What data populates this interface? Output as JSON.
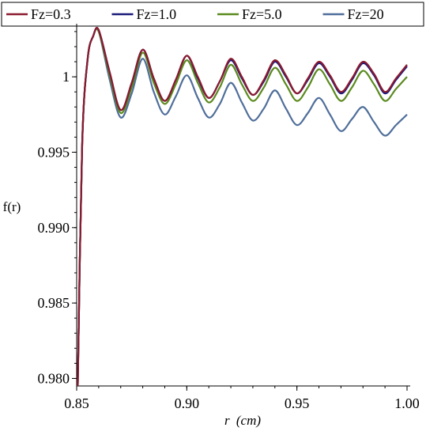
{
  "chart_data": {
    "type": "line",
    "xlabel": "r (cm)",
    "xlabel_var": "r",
    "xlabel_unit": "(cm)",
    "ylabel": "f(r)",
    "xlim": [
      0.85,
      1.0
    ],
    "ylim": [
      0.9795,
      1.0031
    ],
    "x_ticks": [
      {
        "value": 0.85,
        "label": "0.85"
      },
      {
        "value": 0.9,
        "label": "0.90"
      },
      {
        "value": 0.95,
        "label": "0.95"
      },
      {
        "value": 1.0,
        "label": "1.00"
      }
    ],
    "y_ticks": [
      {
        "value": 0.98,
        "label": "0.980"
      },
      {
        "value": 0.985,
        "label": "0.985"
      },
      {
        "value": 0.99,
        "label": "0.990"
      },
      {
        "value": 0.995,
        "label": "0.995"
      },
      {
        "value": 1.0,
        "label": "1"
      }
    ],
    "grid": false,
    "legend_position": "top",
    "series": [
      {
        "name": "Fz=0.3",
        "color": "#8b1a2f",
        "x": [
          0.8505,
          0.8525,
          0.855,
          0.8575,
          0.86,
          0.865,
          0.87,
          0.875,
          0.88,
          0.885,
          0.89,
          0.895,
          0.9,
          0.905,
          0.91,
          0.915,
          0.92,
          0.925,
          0.93,
          0.935,
          0.94,
          0.945,
          0.95,
          0.955,
          0.96,
          0.965,
          0.97,
          0.975,
          0.98,
          0.985,
          0.99,
          0.995,
          1.0
        ],
        "y": [
          0.9795,
          0.9955,
          1.0012,
          1.0027,
          1.0031,
          1.0003,
          0.9978,
          0.9996,
          1.0018,
          0.9999,
          0.9984,
          0.9998,
          1.0014,
          1.0,
          0.9986,
          0.9997,
          1.0012,
          1.0,
          0.9988,
          0.9998,
          1.0011,
          1.0001,
          0.9989,
          0.9999,
          1.001,
          1.0001,
          0.999,
          0.9999,
          1.001,
          1.0002,
          0.999,
          0.9999,
          1.0008
        ]
      },
      {
        "name": "Fz=1.0",
        "color": "#1a1a7a",
        "x": [
          0.8505,
          0.8525,
          0.855,
          0.8575,
          0.86,
          0.865,
          0.87,
          0.875,
          0.88,
          0.885,
          0.89,
          0.895,
          0.9,
          0.905,
          0.91,
          0.915,
          0.92,
          0.925,
          0.93,
          0.935,
          0.94,
          0.945,
          0.95,
          0.955,
          0.96,
          0.965,
          0.97,
          0.975,
          0.98,
          0.985,
          0.99,
          0.995,
          1.0
        ],
        "y": [
          0.9795,
          0.9955,
          1.0012,
          1.0027,
          1.0031,
          1.0003,
          0.9978,
          0.9996,
          1.0018,
          0.9999,
          0.9984,
          0.9998,
          1.0014,
          0.9999,
          0.9986,
          0.9997,
          1.0011,
          0.9999,
          0.9988,
          0.9997,
          1.001,
          1.0,
          0.9989,
          0.9998,
          1.0009,
          1.0,
          0.9989,
          0.9998,
          1.0009,
          1.0001,
          0.9989,
          0.9998,
          1.0007
        ]
      },
      {
        "name": "Fz=5.0",
        "color": "#5a8a1e",
        "x": [
          0.8505,
          0.8525,
          0.855,
          0.8575,
          0.86,
          0.865,
          0.87,
          0.875,
          0.88,
          0.885,
          0.89,
          0.895,
          0.9,
          0.905,
          0.91,
          0.915,
          0.92,
          0.925,
          0.93,
          0.935,
          0.94,
          0.945,
          0.95,
          0.955,
          0.96,
          0.965,
          0.97,
          0.975,
          0.98,
          0.985,
          0.99,
          0.995,
          1.0
        ],
        "y": [
          0.9795,
          0.9955,
          1.0012,
          1.0027,
          1.003,
          1.0001,
          0.9976,
          0.9993,
          1.0016,
          0.9996,
          0.9982,
          0.9995,
          1.0011,
          0.9996,
          0.9983,
          0.9993,
          1.0008,
          0.9995,
          0.9984,
          0.9993,
          1.0006,
          0.9995,
          0.9984,
          0.9993,
          1.0005,
          0.9995,
          0.9984,
          0.9993,
          1.0004,
          0.9995,
          0.9984,
          0.9992,
          1.0
        ]
      },
      {
        "name": "Fz=20",
        "color": "#4f6e9a",
        "x": [
          0.8505,
          0.8525,
          0.855,
          0.8575,
          0.86,
          0.865,
          0.87,
          0.875,
          0.88,
          0.885,
          0.89,
          0.895,
          0.9,
          0.905,
          0.91,
          0.915,
          0.92,
          0.925,
          0.93,
          0.935,
          0.94,
          0.945,
          0.95,
          0.955,
          0.96,
          0.965,
          0.97,
          0.975,
          0.98,
          0.985,
          0.99,
          0.995,
          1.0
        ],
        "y": [
          0.9795,
          0.9955,
          1.0012,
          1.0027,
          1.003,
          0.9998,
          0.9973,
          0.9989,
          1.0012,
          0.999,
          0.9975,
          0.9987,
          1.0001,
          0.9986,
          0.9973,
          0.9982,
          0.9996,
          0.9983,
          0.9971,
          0.9979,
          0.9991,
          0.9979,
          0.9968,
          0.9976,
          0.9986,
          0.9975,
          0.9964,
          0.9972,
          0.998,
          0.997,
          0.9961,
          0.9968,
          0.9975
        ]
      }
    ]
  }
}
